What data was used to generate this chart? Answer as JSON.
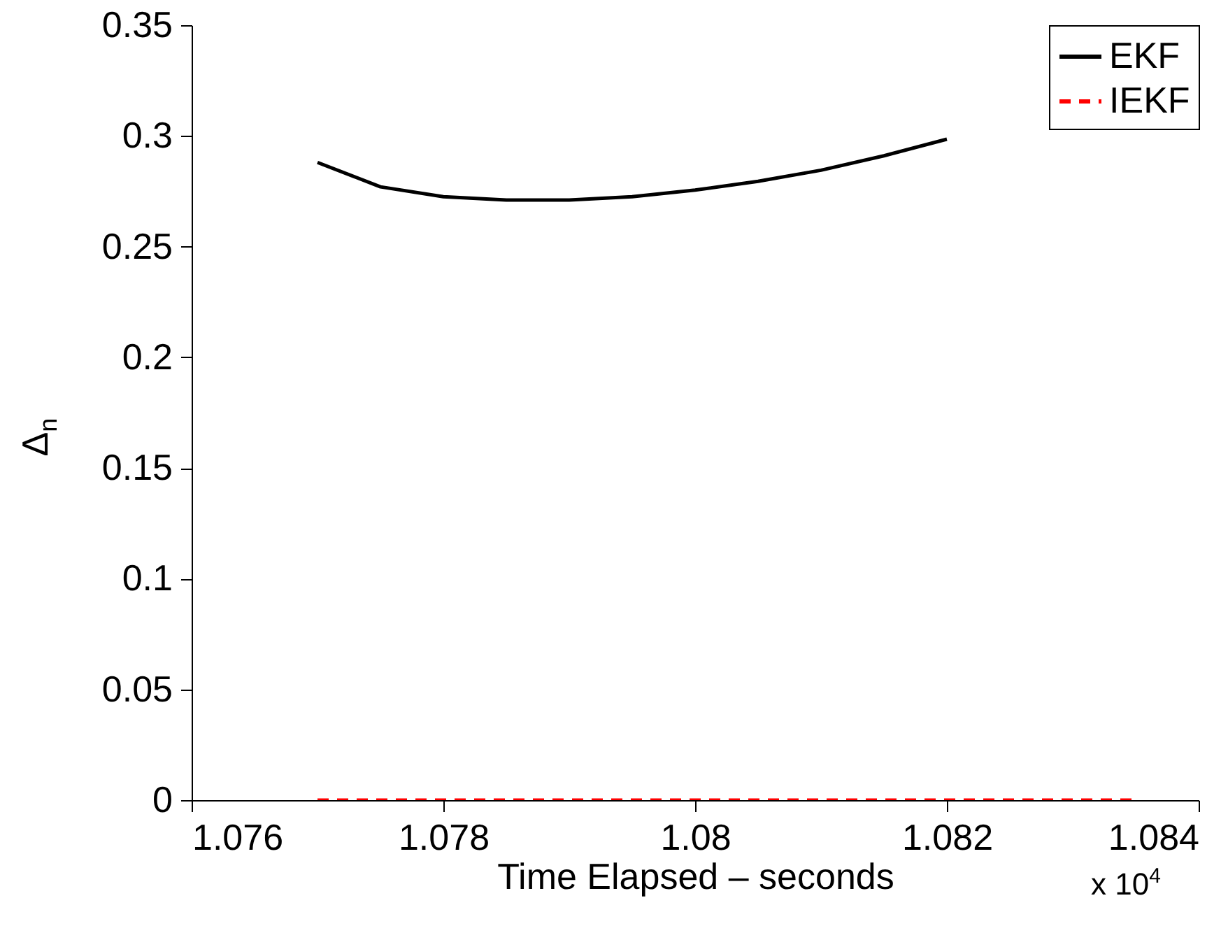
{
  "chart_data": {
    "type": "line",
    "xlabel": "Time Elapsed – seconds",
    "ylabel": "Δ$_{n}$",
    "annotations": [
      "x 10$^{4}$"
    ],
    "x": [
      1.077,
      1.0775,
      1.078,
      1.0785,
      1.079,
      1.0795,
      1.08,
      1.0805,
      1.081,
      1.0815,
      1.082,
      1.0825,
      1.083,
      1.0835
    ],
    "series": [
      {
        "name": "EKF",
        "color": "#000000",
        "line_style": "solid",
        "values": [
          0.288,
          0.277,
          0.2725,
          0.271,
          0.271,
          0.2725,
          0.2755,
          0.2795,
          0.2845,
          0.291,
          0.2985,
          null,
          null,
          null
        ]
      },
      {
        "name": "IEKF",
        "color": "#ff0000",
        "line_style": "dashed",
        "values": [
          0,
          0,
          0,
          0,
          0,
          0,
          0,
          0,
          0,
          0,
          0,
          0,
          0,
          0
        ]
      }
    ],
    "xlim": [
      1.076,
      1.084
    ],
    "xticks": [
      1.076,
      1.078,
      1.08,
      1.082,
      1.084
    ],
    "ylim": [
      0,
      0.35
    ],
    "yticks": [
      0,
      0.05,
      0.1,
      0.15,
      0.2,
      0.25,
      0.3,
      0.35
    ],
    "grid": false,
    "legend": "top right"
  }
}
